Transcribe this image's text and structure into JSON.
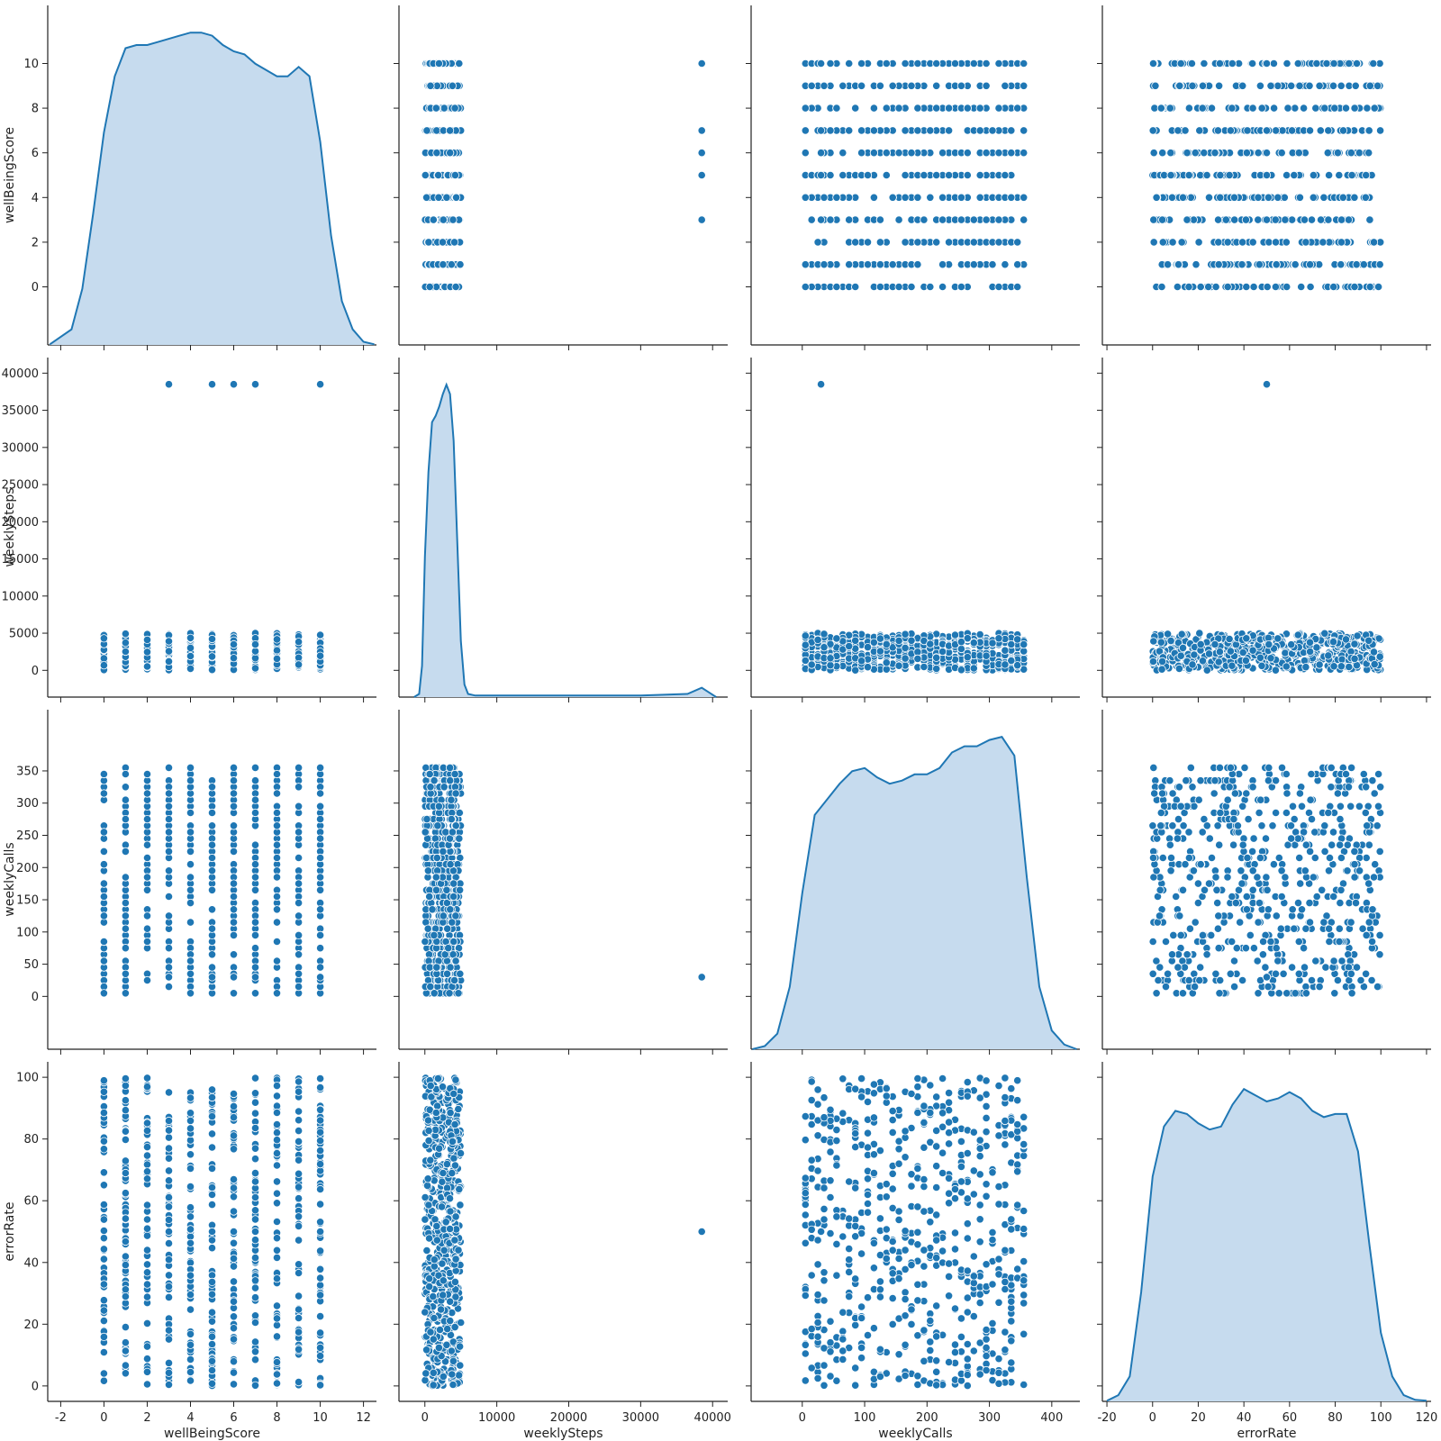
{
  "chart_data": {
    "type": "scatter",
    "kind": "pairplot",
    "diagonal_kind": "kde",
    "grid": false,
    "legend": "none",
    "colors": {
      "points": "#1f77b4",
      "kde_line": "#1f77b4",
      "kde_fill": "#c6dbee",
      "point_edge": "#ffffff"
    },
    "variables": [
      "wellBeingScore",
      "weeklySteps",
      "weeklyCalls",
      "errorRate"
    ],
    "axes": {
      "wellBeingScore": {
        "label": "wellBeingScore",
        "range": [
          -2.6,
          12.6
        ],
        "ticks": [
          0,
          2,
          4,
          6,
          8,
          10
        ],
        "x_ticks": [
          -2,
          0,
          2,
          4,
          6,
          8,
          10,
          12
        ]
      },
      "weeklySteps": {
        "label": "weeklySteps",
        "range": [
          -3600,
          42100
        ],
        "ticks": [
          0,
          5000,
          10000,
          15000,
          20000,
          25000,
          30000,
          35000,
          40000
        ],
        "x_ticks": [
          0,
          10000,
          20000,
          30000,
          40000
        ]
      },
      "weeklyCalls": {
        "label": "weeklyCalls",
        "range": [
          -82,
          445
        ],
        "ticks": [
          0,
          50,
          100,
          150,
          200,
          250,
          300,
          350
        ],
        "x_ticks": [
          0,
          100,
          200,
          300,
          400
        ]
      },
      "errorRate": {
        "label": "errorRate",
        "range": [
          -5,
          105
        ],
        "ticks": [
          0,
          20,
          40,
          60,
          80,
          100
        ],
        "x_range": [
          -22,
          122
        ],
        "x_ticks": [
          -20,
          0,
          20,
          40,
          60,
          80,
          100,
          120
        ]
      }
    },
    "observed_distributions": {
      "wellBeingScore": {
        "values": [
          0,
          1,
          2,
          3,
          4,
          5,
          6,
          7,
          8,
          9,
          10
        ]
      },
      "weeklySteps": {
        "min": 0,
        "max": 5000
      },
      "weeklyCalls": {
        "min": 5,
        "max": 355,
        "step": 10
      },
      "errorRate": {
        "min": 0,
        "max": 100
      }
    },
    "outliers": [
      {
        "wellBeingScore": 3,
        "weeklySteps": 38500,
        "weeklyCalls": 30,
        "errorRate": 50
      },
      {
        "wellBeingScore": 5,
        "weeklySteps": 38500,
        "weeklyCalls": 30,
        "errorRate": 50
      },
      {
        "wellBeingScore": 6,
        "weeklySteps": 38500,
        "weeklyCalls": 30,
        "errorRate": 50
      },
      {
        "wellBeingScore": 7,
        "weeklySteps": 38500,
        "weeklyCalls": 30,
        "errorRate": 50
      },
      {
        "wellBeingScore": 10,
        "weeklySteps": 38500,
        "weeklyCalls": 30,
        "errorRate": 50
      }
    ],
    "kde": {
      "wellBeingScore": {
        "x": [
          -2.5,
          -1.5,
          -1,
          -0.5,
          0,
          0.5,
          1,
          1.5,
          2,
          2.5,
          3,
          3.5,
          4,
          4.5,
          5,
          5.5,
          6,
          6.5,
          7,
          7.5,
          8,
          8.5,
          9,
          9.5,
          10,
          10.5,
          11,
          11.5,
          12,
          12.5
        ],
        "density": [
          0.002,
          0.05,
          0.18,
          0.42,
          0.68,
          0.86,
          0.95,
          0.96,
          0.96,
          0.97,
          0.98,
          0.99,
          1.0,
          1.0,
          0.99,
          0.96,
          0.94,
          0.93,
          0.9,
          0.88,
          0.86,
          0.86,
          0.89,
          0.86,
          0.65,
          0.35,
          0.14,
          0.05,
          0.01,
          0.002
        ]
      },
      "weeklySteps": {
        "x": [
          -1500,
          -800,
          -400,
          0,
          500,
          1000,
          1500,
          2000,
          2500,
          3000,
          3500,
          4000,
          4500,
          5000,
          5500,
          6000,
          7000,
          10000,
          20000,
          30000,
          36500,
          37500,
          38500,
          39500,
          40500
        ],
        "density": [
          0.0,
          0.01,
          0.1,
          0.45,
          0.72,
          0.88,
          0.9,
          0.93,
          0.97,
          1.0,
          0.97,
          0.82,
          0.5,
          0.18,
          0.04,
          0.01,
          0.005,
          0.005,
          0.005,
          0.005,
          0.01,
          0.02,
          0.03,
          0.015,
          0.0
        ]
      },
      "weeklyCalls": {
        "x": [
          -80,
          -60,
          -40,
          -20,
          0,
          20,
          40,
          60,
          80,
          100,
          120,
          140,
          160,
          180,
          200,
          220,
          240,
          260,
          280,
          300,
          320,
          340,
          360,
          380,
          400,
          420,
          440
        ],
        "density": [
          0.0,
          0.01,
          0.05,
          0.2,
          0.5,
          0.75,
          0.8,
          0.85,
          0.89,
          0.9,
          0.87,
          0.85,
          0.86,
          0.88,
          0.88,
          0.9,
          0.95,
          0.97,
          0.97,
          0.99,
          1.0,
          0.94,
          0.55,
          0.2,
          0.06,
          0.015,
          0.0
        ]
      },
      "errorRate": {
        "x": [
          -20,
          -15,
          -10,
          -5,
          0,
          5,
          10,
          15,
          20,
          25,
          30,
          35,
          40,
          45,
          50,
          55,
          60,
          65,
          70,
          75,
          80,
          85,
          90,
          95,
          100,
          105,
          110,
          115,
          120
        ],
        "density": [
          0.002,
          0.02,
          0.08,
          0.35,
          0.72,
          0.88,
          0.93,
          0.92,
          0.89,
          0.87,
          0.88,
          0.95,
          1.0,
          0.98,
          0.96,
          0.97,
          0.99,
          0.97,
          0.93,
          0.91,
          0.92,
          0.92,
          0.8,
          0.5,
          0.22,
          0.08,
          0.02,
          0.005,
          0.002
        ]
      }
    }
  }
}
